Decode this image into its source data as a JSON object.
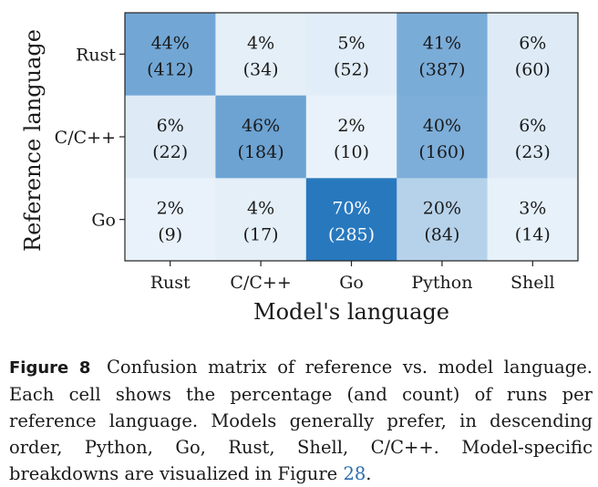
{
  "caption": {
    "label": "Figure 8",
    "text_before": "Confusion matrix of reference vs. model language. Each cell shows the percentage (and count) of runs per reference language. Models generally prefer, in descending order, Python, Go, Rust, Shell, C/C++. Model-specific breakdowns are visualized in Figure ",
    "ref": "28",
    "text_after": "."
  },
  "chart_data": {
    "type": "heatmap",
    "title": "",
    "xlabel": "Model's language",
    "ylabel": "Reference language",
    "x_categories": [
      "Rust",
      "C/C++",
      "Go",
      "Python",
      "Shell"
    ],
    "y_categories": [
      "Rust",
      "C/C++",
      "Go"
    ],
    "colormap": "Blues",
    "cells": [
      [
        {
          "pct": "44%",
          "count": "(412)",
          "value": 44
        },
        {
          "pct": "4%",
          "count": "(34)",
          "value": 4
        },
        {
          "pct": "5%",
          "count": "(52)",
          "value": 5
        },
        {
          "pct": "41%",
          "count": "(387)",
          "value": 41
        },
        {
          "pct": "6%",
          "count": "(60)",
          "value": 6
        }
      ],
      [
        {
          "pct": "6%",
          "count": "(22)",
          "value": 6
        },
        {
          "pct": "46%",
          "count": "(184)",
          "value": 46
        },
        {
          "pct": "2%",
          "count": "(10)",
          "value": 2
        },
        {
          "pct": "40%",
          "count": "(160)",
          "value": 40
        },
        {
          "pct": "6%",
          "count": "(23)",
          "value": 6
        }
      ],
      [
        {
          "pct": "2%",
          "count": "(9)",
          "value": 2
        },
        {
          "pct": "4%",
          "count": "(17)",
          "value": 4
        },
        {
          "pct": "70%",
          "count": "(285)",
          "value": 70
        },
        {
          "pct": "20%",
          "count": "(84)",
          "value": 20
        },
        {
          "pct": "3%",
          "count": "(14)",
          "value": 3
        }
      ]
    ]
  }
}
